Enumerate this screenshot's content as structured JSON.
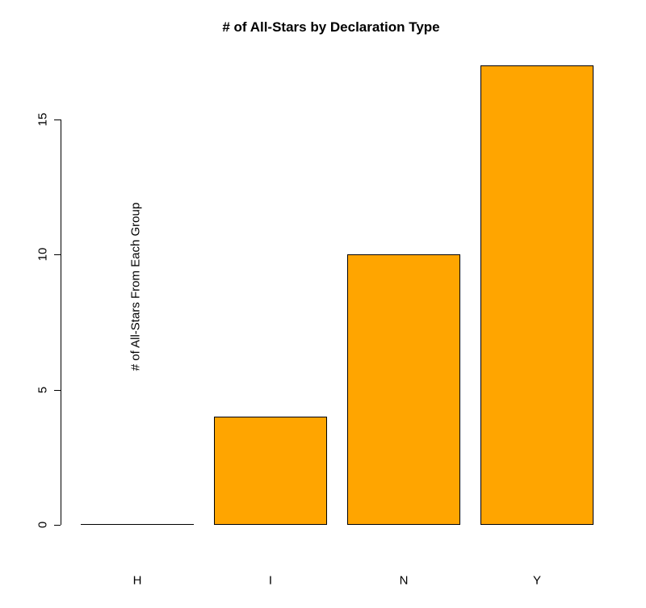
{
  "chart_data": {
    "type": "bar",
    "title": "# of All-Stars by Declaration Type",
    "xlabel": "",
    "ylabel": "# of All-Stars From Each Group",
    "categories": [
      "H",
      "I",
      "N",
      "Y"
    ],
    "values": [
      0,
      4,
      10,
      17
    ],
    "yticks": [
      0,
      5,
      10,
      15
    ],
    "ylim": [
      0,
      17
    ],
    "grid": false,
    "legend": null,
    "bar_color": "#FFA500",
    "bar_border_color": "#000000",
    "background_color": "#FFFFFF",
    "text_color": "#000000"
  }
}
